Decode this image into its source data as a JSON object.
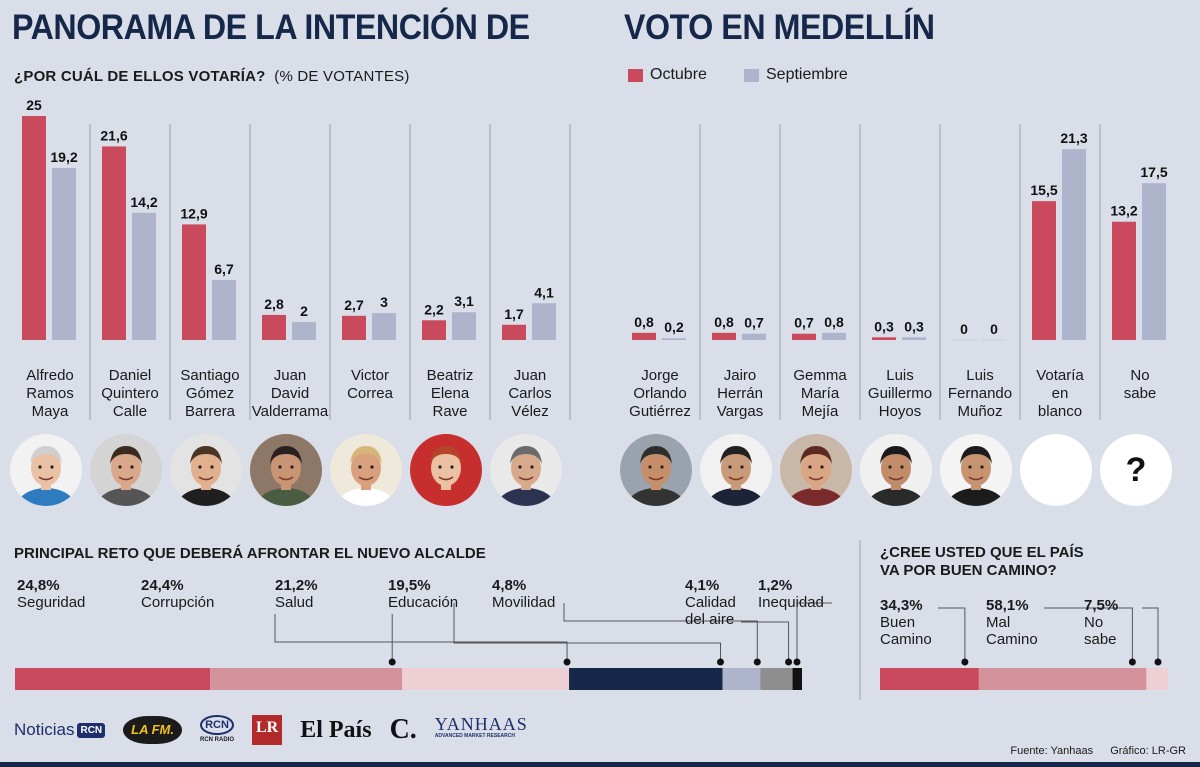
{
  "title_left": "PANORAMA DE LA INTENCIÓN DE",
  "title_right": "VOTO EN MEDELLÍN",
  "subtitle_main": "¿POR CUÁL DE ELLOS VOTARÍA?",
  "subtitle_unit": "(% DE VOTANTES)",
  "colors": {
    "octubre": "#c94a5c",
    "septiembre": "#adb4cc",
    "navy": "#15284a",
    "background": "#d9dee9"
  },
  "chart_data": [
    {
      "type": "bar",
      "title": "¿POR CUÁL DE ELLOS VOTARÍA?",
      "ylabel": "(% DE VOTANTES)",
      "categories": [
        "Alfredo Ramos Maya",
        "Daniel Quintero Calle",
        "Santiago Gómez Barrera",
        "Juan David Valderrama",
        "Victor Correa",
        "Beatriz Elena Rave",
        "Juan Carlos Vélez",
        "Jorge Orlando Gutiérrez",
        "Jairo Herrán Vargas",
        "Gemma María Mejía",
        "Luis Guillermo Hoyos",
        "Luis Fernando Muñoz",
        "Votaría en blanco",
        "No sabe"
      ],
      "category_lines": [
        [
          "Alfredo",
          "Ramos",
          "Maya"
        ],
        [
          "Daniel",
          "Quintero",
          "Calle"
        ],
        [
          "Santiago",
          "Gómez",
          "Barrera"
        ],
        [
          "Juan",
          "David",
          "Valderrama"
        ],
        [
          "Victor",
          "Correa"
        ],
        [
          "Beatriz",
          "Elena",
          "Rave"
        ],
        [
          "Juan",
          "Carlos",
          "Vélez"
        ],
        [
          "Jorge",
          "Orlando",
          "Gutiérrez"
        ],
        [
          "Jairo",
          "Herrán",
          "Vargas"
        ],
        [
          "Gemma",
          "María",
          "Mejía"
        ],
        [
          "Luis",
          "Guillermo",
          "Hoyos"
        ],
        [
          "Luis",
          "Fernando",
          "Muñoz"
        ],
        [
          "Votaría",
          "en",
          "blanco"
        ],
        [
          "No",
          "sabe"
        ]
      ],
      "series": [
        {
          "name": "Octubre",
          "color": "#c94a5c",
          "values": [
            25,
            21.6,
            12.9,
            2.8,
            2.7,
            2.2,
            1.7,
            0.8,
            0.8,
            0.7,
            0.3,
            0,
            15.5,
            13.2
          ],
          "labels": [
            "25",
            "21,6",
            "12,9",
            "2,8",
            "2,7",
            "2,2",
            "1,7",
            "0,8",
            "0,8",
            "0,7",
            "0,3",
            "0",
            "15,5",
            "13,2"
          ]
        },
        {
          "name": "Septiembre",
          "color": "#adb4cc",
          "values": [
            19.2,
            14.2,
            6.7,
            2,
            3,
            3.1,
            4.1,
            0.2,
            0.7,
            0.8,
            0.3,
            0,
            21.3,
            17.5
          ],
          "labels": [
            "19,2",
            "14,2",
            "6,7",
            "2",
            "3",
            "3,1",
            "4,1",
            "0,2",
            "0,7",
            "0,8",
            "0,3",
            "0",
            "21,3",
            "17,5"
          ]
        }
      ],
      "ylim": [
        0,
        25
      ],
      "legend_position": "top-right",
      "grid": false
    },
    {
      "type": "bar",
      "title": "PRINCIPAL RETO QUE DEBERÁ AFRONTAR EL NUEVO ALCALDE",
      "stacked": true,
      "segments": [
        {
          "pct": "24,8%",
          "value": 24.8,
          "lines": [
            "Seguridad"
          ],
          "color": "#c94a5c"
        },
        {
          "pct": "24,4%",
          "value": 24.4,
          "lines": [
            "Corrupción"
          ],
          "color": "#d4939c"
        },
        {
          "pct": "21,2%",
          "value": 21.2,
          "lines": [
            "Salud"
          ],
          "color": "#eed0d4"
        },
        {
          "pct": "19,5%",
          "value": 19.5,
          "lines": [
            "Educación"
          ],
          "color": "#15284a"
        },
        {
          "pct": "4,8%",
          "value": 4.8,
          "lines": [
            "Movilidad"
          ],
          "color": "#adb4cc"
        },
        {
          "pct": "4,1%",
          "value": 4.1,
          "lines": [
            "Calidad",
            "del aire"
          ],
          "color": "#8e8e8e"
        },
        {
          "pct": "1,2%",
          "value": 1.2,
          "lines": [
            "Inequidad"
          ],
          "color": "#111111"
        }
      ]
    },
    {
      "type": "bar",
      "title": "¿CREE USTED QUE EL PAÍS VA POR BUEN CAMINO?",
      "title_lines": [
        "¿CREE USTED QUE EL PAÍS",
        "VA POR BUEN CAMINO?"
      ],
      "stacked": true,
      "segments": [
        {
          "pct": "34,3%",
          "value": 34.3,
          "lines": [
            "Buen",
            "Camino"
          ],
          "color": "#c94a5c"
        },
        {
          "pct": "58,1%",
          "value": 58.1,
          "lines": [
            "Mal",
            "Camino"
          ],
          "color": "#d4939c"
        },
        {
          "pct": "7,5%",
          "value": 7.5,
          "lines": [
            "No",
            "sabe"
          ],
          "color": "#eed0d4"
        }
      ]
    }
  ],
  "photos": [
    {
      "name": "Alfredo Ramos Maya",
      "icon": "portrait-icon",
      "shirt": "#2f7bc0",
      "hair": "#cfcfcf",
      "skin": "#e9c2a6",
      "bg": "#f2f2f2"
    },
    {
      "name": "Daniel Quintero Calle",
      "icon": "portrait-icon",
      "shirt": "#555555",
      "hair": "#3a2a20",
      "skin": "#d9a88a",
      "bg": "#d4d4d4"
    },
    {
      "name": "Santiago Gómez Barrera",
      "icon": "portrait-icon",
      "shirt": "#1f1f1f",
      "hair": "#4a3426",
      "skin": "#e0b08f",
      "bg": "#e3e3e3"
    },
    {
      "name": "Juan David Valderrama",
      "icon": "portrait-icon",
      "shirt": "#4a5d43",
      "hair": "#2a2020",
      "skin": "#c99474",
      "bg": "#8d7766"
    },
    {
      "name": "Victor Correa",
      "icon": "portrait-icon",
      "shirt": "#ffffff",
      "hair": "#d7b57a",
      "skin": "#d9a07e",
      "bg": "#efe9dc"
    },
    {
      "name": "Beatriz Elena Rave",
      "icon": "portrait-icon",
      "shirt": "#c72f2f",
      "hair": "#b5442b",
      "skin": "#ebc0a3",
      "bg": "#c72f2f"
    },
    {
      "name": "Juan Carlos Vélez",
      "icon": "portrait-icon",
      "shirt": "#2b3350",
      "hair": "#6b6b6b",
      "skin": "#d8aa8c",
      "bg": "#e9e9e9"
    },
    {
      "name": "Jorge Orlando Gutiérrez",
      "icon": "portrait-icon",
      "shirt": "#333333",
      "hair": "#2e2e2e",
      "skin": "#c68f6a",
      "bg": "#9aa3ad"
    },
    {
      "name": "Jairo Herrán Vargas",
      "icon": "portrait-icon",
      "shirt": "#1e2438",
      "hair": "#202020",
      "skin": "#c99a78",
      "bg": "#f1f1f1"
    },
    {
      "name": "Gemma María Mejía",
      "icon": "portrait-icon",
      "shirt": "#7a2a2a",
      "hair": "#5a2a20",
      "skin": "#d9a584",
      "bg": "#c9b7a8"
    },
    {
      "name": "Luis Guillermo Hoyos",
      "icon": "portrait-icon",
      "shirt": "#2a2a2a",
      "hair": "#1a1a1a",
      "skin": "#c28c6b",
      "bg": "#f0f0f0"
    },
    {
      "name": "Luis Fernando Muñoz",
      "icon": "portrait-icon",
      "shirt": "#1c1c1c",
      "hair": "#1c1c1c",
      "skin": "#c89371",
      "bg": "#f4f4f4"
    },
    {
      "name": "Votaría en blanco",
      "icon": "blank-circle-icon"
    },
    {
      "name": "No sabe",
      "icon": "question-mark-icon",
      "symbol": "?"
    }
  ],
  "logos": {
    "noticias": "Noticias",
    "rcn": "RCN",
    "lafm": "LA FM.",
    "rcnradio_top": "RCN",
    "rcnradio_bottom": "RCN RADIO",
    "lr": "LR",
    "elpais": "El País",
    "colombiano": "C.",
    "yanhaas": "YANHAAS",
    "yanhaas_sub": "ADVANCED MARKET RESEARCH"
  },
  "footer": {
    "fuente": "Fuente: Yanhaas",
    "grafico": "Gráfico: LR-GR"
  }
}
